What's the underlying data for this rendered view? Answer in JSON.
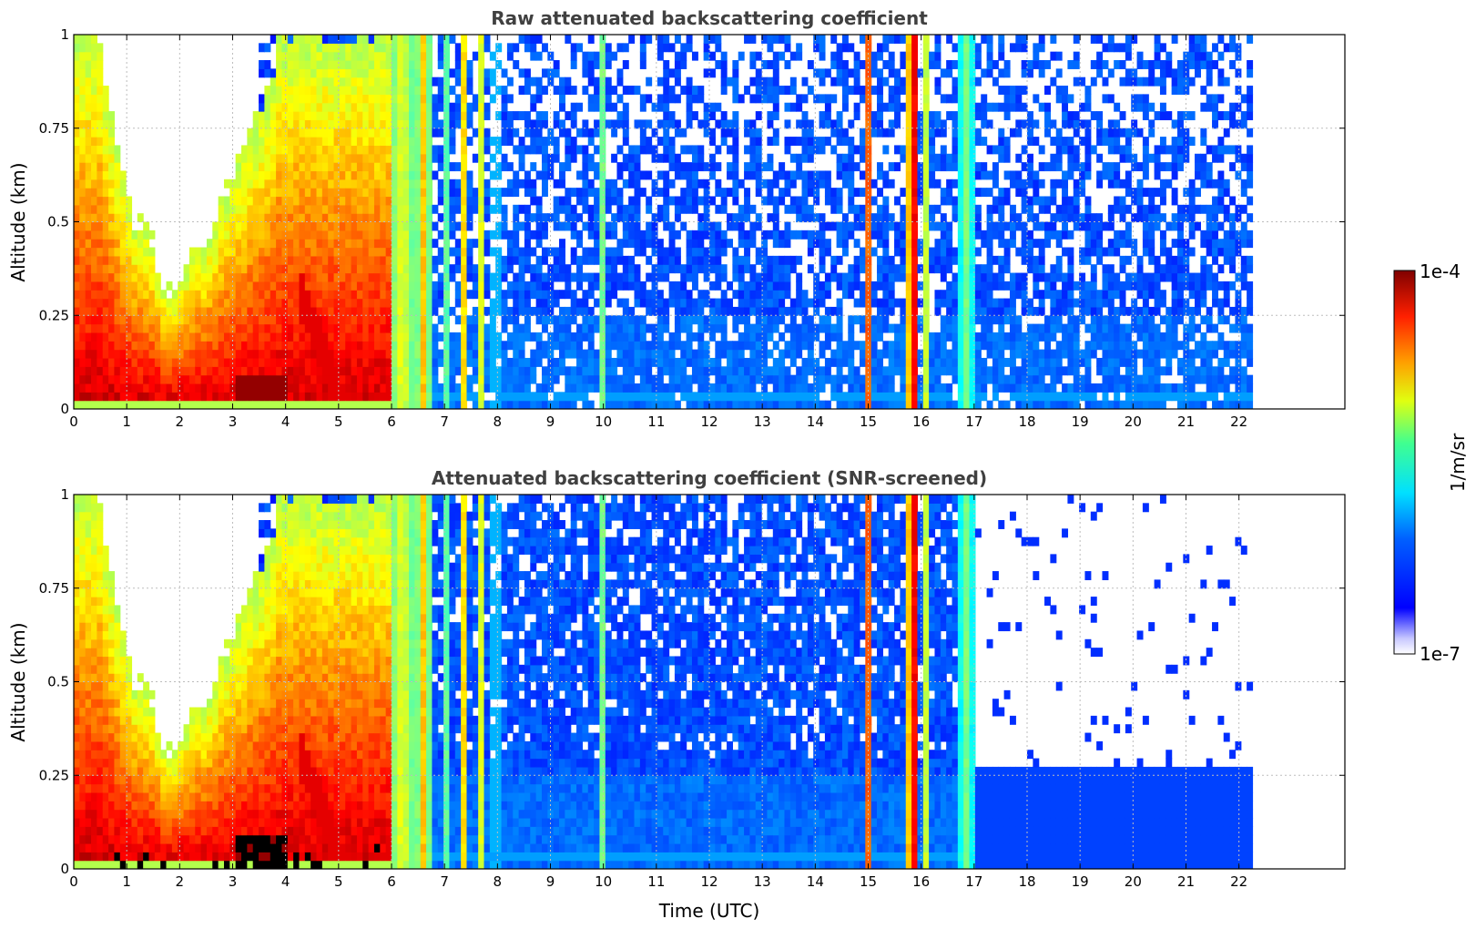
{
  "chart_data": {
    "type": "heatmap",
    "x_unit_label": "Time (UTC)",
    "y_unit_label": "Altitude (km)",
    "panels": [
      {
        "title": "Raw attenuated backscattering coefficient",
        "xlim": [
          0,
          24
        ],
        "ylim": [
          0,
          1
        ],
        "xticks": [
          "0",
          "1",
          "2",
          "3",
          "4",
          "5",
          "6",
          "7",
          "8",
          "9",
          "10",
          "11",
          "12",
          "13",
          "14",
          "15",
          "16",
          "17",
          "18",
          "19",
          "20",
          "21",
          "22"
        ],
        "yticks": [
          "0",
          "0.25",
          "0.5",
          "0.75",
          "1"
        ],
        "data_end_time": 22.3,
        "grid": true,
        "screened": false
      },
      {
        "title": "Attenuated backscattering coefficient (SNR-screened)",
        "xlim": [
          0,
          24
        ],
        "ylim": [
          0,
          1
        ],
        "xticks": [
          "0",
          "1",
          "2",
          "3",
          "4",
          "5",
          "6",
          "7",
          "8",
          "9",
          "10",
          "11",
          "12",
          "13",
          "14",
          "15",
          "16",
          "17",
          "18",
          "19",
          "20",
          "21",
          "22"
        ],
        "yticks": [
          "0",
          "0.25",
          "0.5",
          "0.75",
          "1"
        ],
        "data_end_time": 22.3,
        "grid": true,
        "screened": true
      }
    ],
    "xlabel": "Time (UTC)",
    "ylabel": "Altitude (km)",
    "colorbar": {
      "label": "1/m/sr",
      "min_label": "1e-7",
      "max_label": "1e-4",
      "scale": "log",
      "colormap": "jet",
      "placement": "right"
    }
  }
}
